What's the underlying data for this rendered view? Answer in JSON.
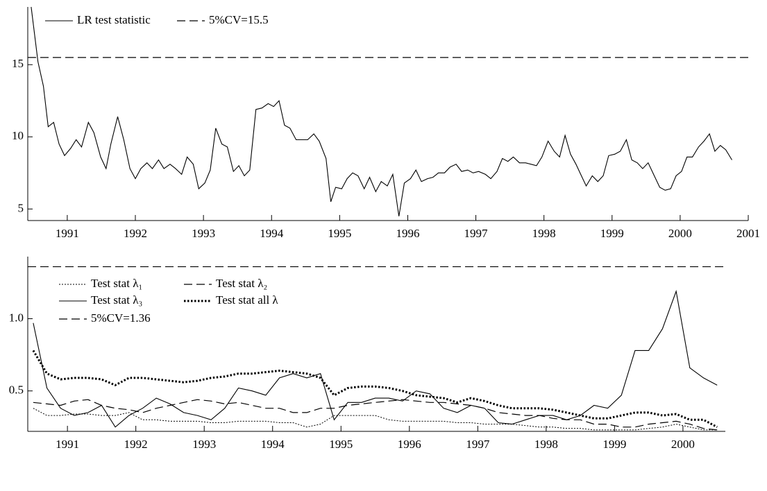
{
  "chart_data": [
    {
      "type": "line",
      "xlim": [
        1990.42,
        2001.0
      ],
      "ylim": [
        4.2,
        19.0
      ],
      "xticks": [
        1991,
        1992,
        1993,
        1994,
        1995,
        1996,
        1997,
        1998,
        1999,
        2000,
        2001
      ],
      "yticks": [
        5,
        10,
        15
      ],
      "x": [
        1990.47,
        1990.57,
        1990.65,
        1990.72,
        1990.8,
        1990.88,
        1990.96,
        1991.05,
        1991.13,
        1991.21,
        1991.31,
        1991.39,
        1991.49,
        1991.57,
        1991.64,
        1991.74,
        1991.83,
        1991.92,
        1992.0,
        1992.08,
        1992.17,
        1992.25,
        1992.34,
        1992.42,
        1992.51,
        1992.59,
        1992.68,
        1992.76,
        1992.85,
        1992.93,
        1993.02,
        1993.1,
        1993.18,
        1993.27,
        1993.35,
        1993.44,
        1993.52,
        1993.6,
        1993.68,
        1993.77,
        1993.86,
        1993.95,
        1994.03,
        1994.11,
        1994.19,
        1994.27,
        1994.36,
        1994.45,
        1994.53,
        1994.62,
        1994.7,
        1994.8,
        1994.87,
        1994.94,
        1995.03,
        1995.11,
        1995.19,
        1995.27,
        1995.36,
        1995.44,
        1995.53,
        1995.61,
        1995.7,
        1995.78,
        1995.87,
        1995.95,
        1996.04,
        1996.12,
        1996.2,
        1996.29,
        1996.37,
        1996.45,
        1996.54,
        1996.62,
        1996.71,
        1996.79,
        1996.88,
        1996.96,
        1997.04,
        1997.14,
        1997.22,
        1997.31,
        1997.39,
        1997.47,
        1997.55,
        1997.64,
        1997.73,
        1997.81,
        1997.89,
        1997.97,
        1998.06,
        1998.15,
        1998.23,
        1998.31,
        1998.39,
        1998.47,
        1998.55,
        1998.62,
        1998.71,
        1998.79,
        1998.87,
        1998.95,
        1999.04,
        1999.12,
        1999.21,
        1999.29,
        1999.37,
        1999.45,
        1999.53,
        1999.61,
        1999.7,
        1999.78,
        1999.86,
        1999.94,
        2000.02,
        2000.1,
        2000.18,
        2000.27,
        2000.35,
        2000.43,
        2000.51,
        2000.59,
        2000.67,
        2000.76
      ],
      "series": [
        {
          "name": "LR test statistic",
          "color": "#000000",
          "style": "solid",
          "values": [
            19.0,
            15.2,
            13.5,
            10.7,
            11.0,
            9.5,
            8.7,
            9.2,
            9.8,
            9.3,
            11.0,
            10.3,
            8.6,
            7.8,
            9.5,
            11.4,
            9.8,
            7.8,
            7.1,
            7.8,
            8.2,
            7.8,
            8.4,
            7.8,
            8.1,
            7.8,
            7.4,
            8.6,
            8.1,
            6.4,
            6.8,
            7.7,
            10.6,
            9.5,
            9.3,
            7.6,
            8.0,
            7.3,
            7.7,
            11.9,
            12.0,
            12.3,
            12.1,
            12.5,
            10.8,
            10.6,
            9.8,
            9.8,
            9.8,
            10.2,
            9.7,
            8.5,
            5.5,
            6.5,
            6.4,
            7.1,
            7.5,
            7.3,
            6.4,
            7.2,
            6.2,
            6.9,
            6.6,
            7.4,
            4.5,
            6.8,
            7.1,
            7.7,
            6.9,
            7.1,
            7.2,
            7.5,
            7.5,
            7.9,
            8.1,
            7.6,
            7.7,
            7.5,
            7.6,
            7.4,
            7.1,
            7.6,
            8.5,
            8.3,
            8.6,
            8.2,
            8.2,
            8.1,
            8.0,
            8.6,
            9.7,
            9.0,
            8.6,
            10.1,
            8.8,
            8.1,
            7.3,
            6.6,
            7.3,
            6.9,
            7.3,
            8.7,
            8.8,
            9.0,
            9.8,
            8.4,
            8.2,
            7.8,
            8.2,
            7.4,
            6.5,
            6.3,
            6.4,
            7.3,
            7.6,
            8.6,
            8.6,
            9.3,
            9.7,
            10.2,
            9.0,
            9.4,
            9.1,
            8.4
          ]
        }
      ],
      "reference_lines": [
        {
          "name": "5%CV=15.5",
          "value": 15.5,
          "color": "#000000",
          "style": "dashed"
        }
      ]
    },
    {
      "type": "line",
      "xlim": [
        1990.42,
        2000.62
      ],
      "ylim": [
        0.22,
        1.43
      ],
      "xticks": [
        1991,
        1992,
        1993,
        1994,
        1995,
        1996,
        1997,
        1998,
        1999,
        2000
      ],
      "yticks": [
        0.5,
        {
          "value": 1,
          "label": "1.0"
        }
      ],
      "x": [
        1990.5,
        1990.7,
        1990.9,
        1991.1,
        1991.3,
        1991.5,
        1991.7,
        1991.9,
        1992.1,
        1992.3,
        1992.5,
        1992.7,
        1992.9,
        1993.1,
        1993.3,
        1993.5,
        1993.7,
        1993.9,
        1994.1,
        1994.3,
        1994.5,
        1994.7,
        1994.9,
        1995.1,
        1995.3,
        1995.5,
        1995.7,
        1995.9,
        1996.1,
        1996.3,
        1996.5,
        1996.7,
        1996.9,
        1997.1,
        1997.3,
        1997.5,
        1997.7,
        1997.9,
        1998.1,
        1998.3,
        1998.5,
        1998.7,
        1998.9,
        1999.1,
        1999.3,
        1999.5,
        1999.7,
        1999.9,
        2000.1,
        2000.3,
        2000.5
      ],
      "series": [
        {
          "name": "Test stat λ₁",
          "color": "#000000",
          "style": "dotted",
          "values": [
            0.38,
            0.33,
            0.33,
            0.34,
            0.34,
            0.33,
            0.33,
            0.35,
            0.3,
            0.3,
            0.29,
            0.29,
            0.29,
            0.28,
            0.28,
            0.29,
            0.29,
            0.29,
            0.28,
            0.28,
            0.25,
            0.27,
            0.33,
            0.33,
            0.33,
            0.33,
            0.3,
            0.29,
            0.29,
            0.29,
            0.29,
            0.28,
            0.28,
            0.27,
            0.27,
            0.27,
            0.26,
            0.25,
            0.25,
            0.24,
            0.24,
            0.23,
            0.23,
            0.23,
            0.23,
            0.24,
            0.25,
            0.27,
            0.25,
            0.23,
            0.23
          ]
        },
        {
          "name": "Test stat λ₂",
          "color": "#000000",
          "style": "dashed",
          "values": [
            0.42,
            0.41,
            0.4,
            0.43,
            0.44,
            0.4,
            0.38,
            0.37,
            0.35,
            0.38,
            0.4,
            0.42,
            0.44,
            0.43,
            0.41,
            0.42,
            0.4,
            0.38,
            0.38,
            0.35,
            0.35,
            0.38,
            0.38,
            0.4,
            0.41,
            0.42,
            0.43,
            0.44,
            0.43,
            0.42,
            0.42,
            0.41,
            0.4,
            0.38,
            0.35,
            0.34,
            0.33,
            0.33,
            0.31,
            0.3,
            0.3,
            0.27,
            0.27,
            0.25,
            0.25,
            0.27,
            0.28,
            0.29,
            0.27,
            0.24,
            0.23
          ]
        },
        {
          "name": "Test stat λ₃",
          "color": "#000000",
          "style": "solid",
          "values": [
            0.97,
            0.52,
            0.38,
            0.33,
            0.35,
            0.4,
            0.25,
            0.33,
            0.38,
            0.45,
            0.41,
            0.35,
            0.33,
            0.3,
            0.38,
            0.52,
            0.5,
            0.47,
            0.59,
            0.62,
            0.59,
            0.62,
            0.3,
            0.42,
            0.42,
            0.45,
            0.45,
            0.43,
            0.5,
            0.48,
            0.38,
            0.35,
            0.4,
            0.38,
            0.28,
            0.27,
            0.3,
            0.33,
            0.33,
            0.3,
            0.33,
            0.4,
            0.38,
            0.47,
            0.78,
            0.78,
            0.93,
            1.19,
            0.66,
            0.59,
            0.54
          ]
        },
        {
          "name": "Test stat all λ",
          "color": "#000000",
          "style": "dotted-bold",
          "values": [
            0.78,
            0.62,
            0.58,
            0.59,
            0.59,
            0.58,
            0.54,
            0.59,
            0.59,
            0.58,
            0.57,
            0.56,
            0.57,
            0.59,
            0.6,
            0.62,
            0.62,
            0.63,
            0.64,
            0.63,
            0.62,
            0.59,
            0.47,
            0.52,
            0.53,
            0.53,
            0.52,
            0.5,
            0.47,
            0.46,
            0.45,
            0.42,
            0.45,
            0.43,
            0.4,
            0.38,
            0.38,
            0.38,
            0.37,
            0.35,
            0.33,
            0.31,
            0.31,
            0.33,
            0.35,
            0.35,
            0.33,
            0.34,
            0.3,
            0.3,
            0.25
          ]
        }
      ],
      "reference_lines": [
        {
          "name": "5%CV=1.36",
          "value": 1.36,
          "color": "#000000",
          "style": "dashed"
        }
      ]
    }
  ]
}
